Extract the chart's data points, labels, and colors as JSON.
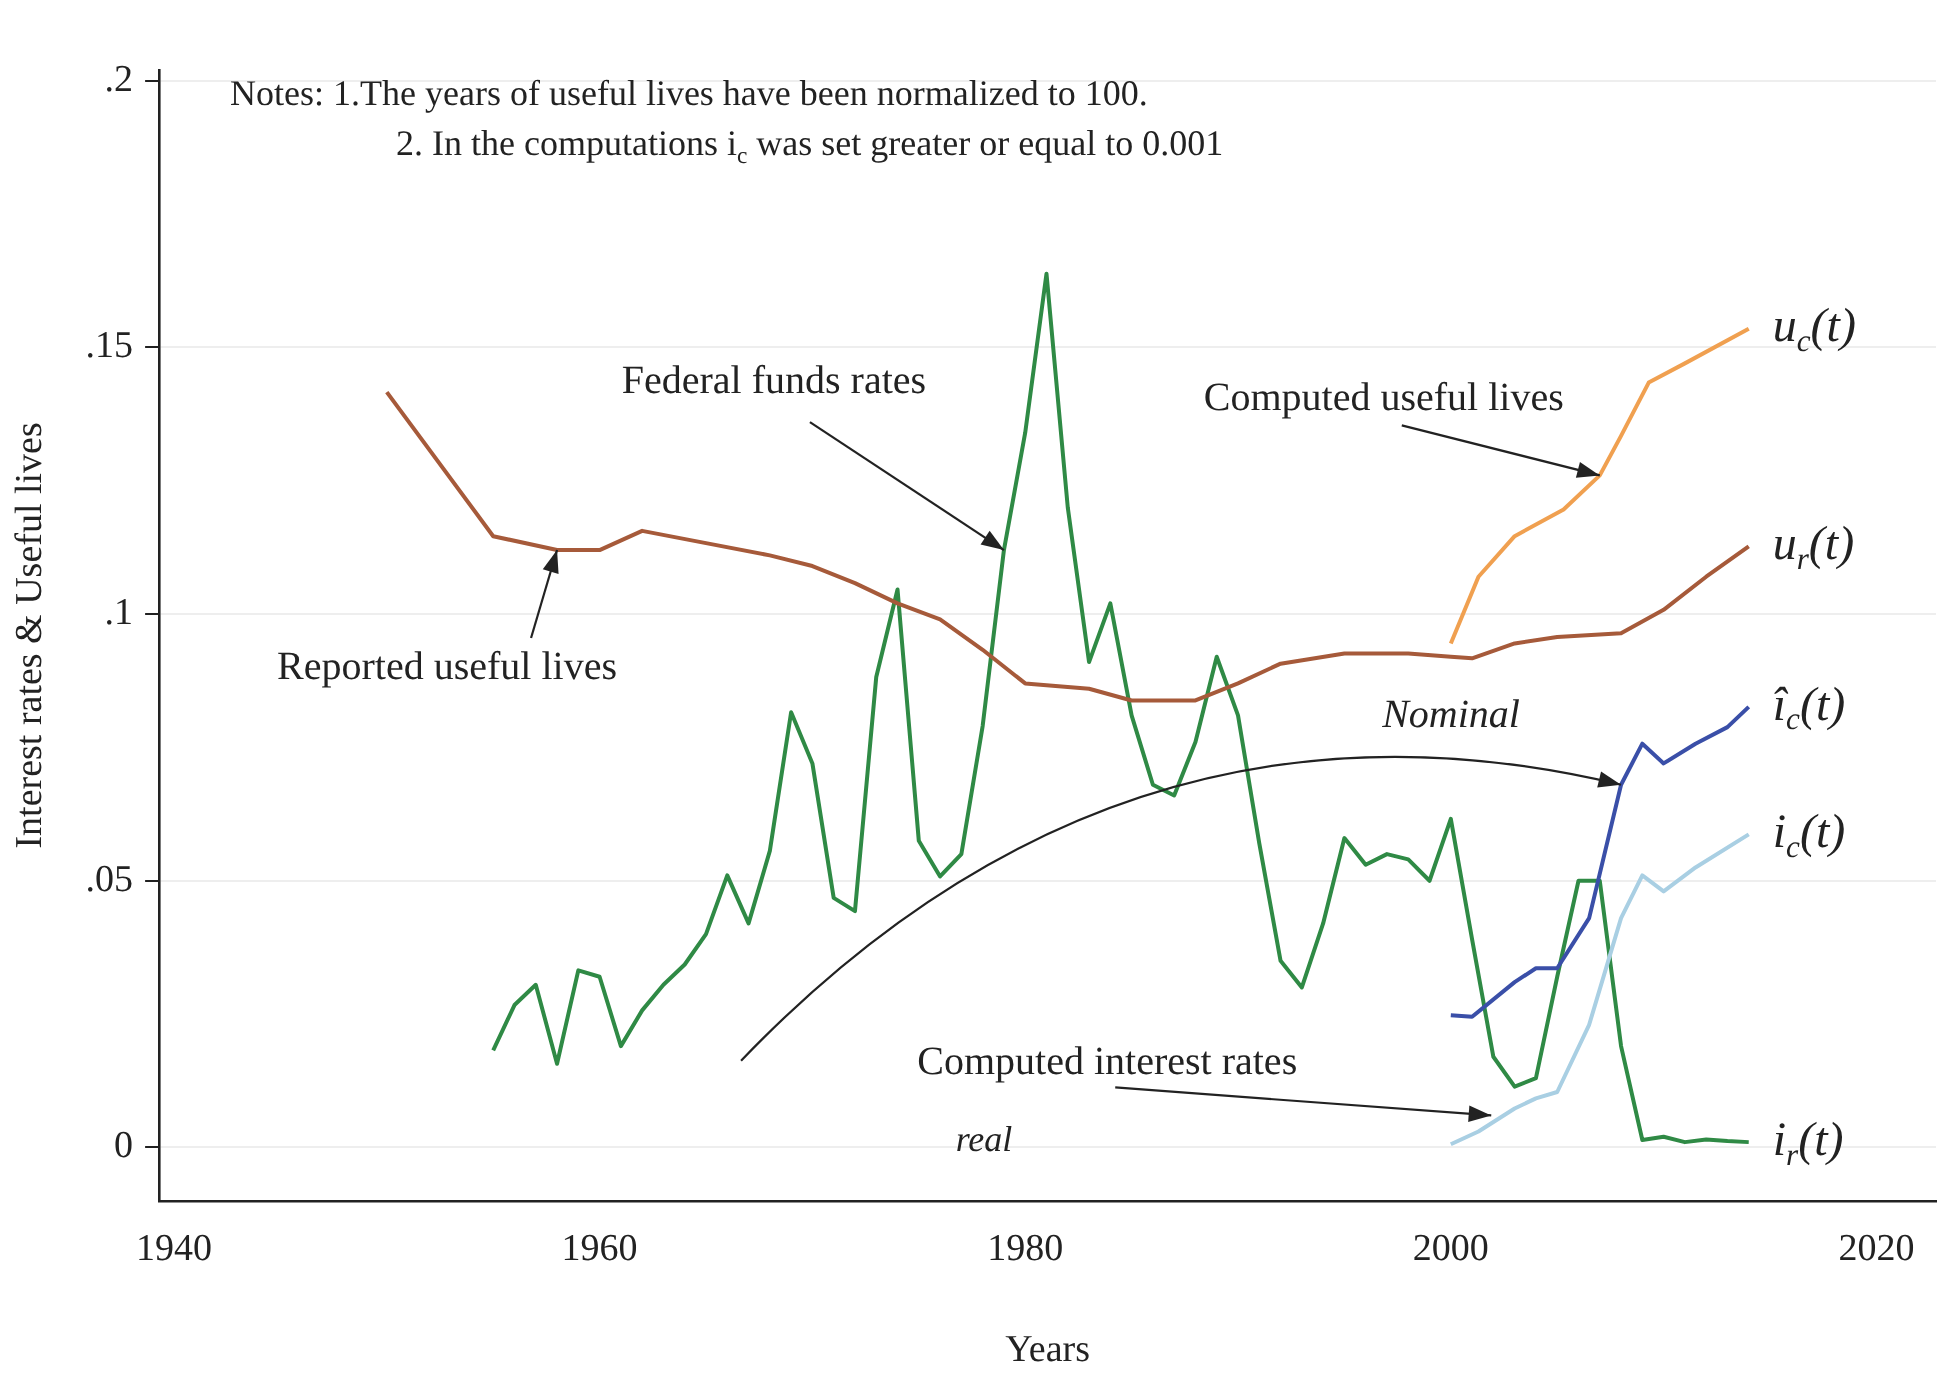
{
  "chart_data": {
    "type": "line",
    "xlabel": "Years",
    "ylabel": "Interest rates & Useful lives",
    "xlim": [
      1939.3,
      2022.8
    ],
    "xticks": [
      1940,
      1960,
      1980,
      2000,
      2020
    ],
    "ylim": [
      -0.01,
      0.202
    ],
    "yticks": [
      {
        "value": 0,
        "label": "0"
      },
      {
        "value": 0.05,
        "label": ".05"
      },
      {
        "value": 0.1,
        "label": ".1"
      },
      {
        "value": 0.15,
        "label": ".15"
      },
      {
        "value": 0.2,
        "label": ".2"
      }
    ],
    "grid": "y",
    "legend": false,
    "marker": "none",
    "line_style": "solid",
    "series": [
      {
        "name": "u$_{c}$(t)",
        "color": "#f0a050",
        "x": [
          2000,
          2001.3,
          2003,
          2005.3,
          2007,
          2008,
          2009.3,
          2011,
          2014
        ],
        "values": [
          0.0945,
          0.107,
          0.1146,
          0.1196,
          0.126,
          0.1334,
          0.1434,
          0.147,
          0.1535
        ]
      },
      {
        "name": "u$_{r}$(t)",
        "color": "#a65a3a",
        "x": [
          1950,
          1955,
          1958,
          1960,
          1962,
          1965,
          1968,
          1970,
          1972,
          1974,
          1976,
          1978,
          1980,
          1983,
          1985,
          1988,
          1990,
          1992,
          1995,
          1998,
          2000,
          2001,
          2003,
          2005,
          2008,
          2010,
          2012,
          2014
        ],
        "values": [
          0.1416,
          0.1146,
          0.112,
          0.112,
          0.1156,
          0.1133,
          0.111,
          0.109,
          0.1058,
          0.102,
          0.099,
          0.0933,
          0.087,
          0.086,
          0.0838,
          0.0838,
          0.087,
          0.0907,
          0.0926,
          0.0926,
          0.092,
          0.0917,
          0.0945,
          0.0957,
          0.0964,
          0.1008,
          0.107,
          0.1127
        ]
      },
      {
        "name": "î$_{c}$(t)",
        "color": "#3a4fa8",
        "x": [
          2000,
          2001,
          2003,
          2004,
          2005,
          2006.5,
          2008,
          2009,
          2010,
          2011.5,
          2013,
          2014
        ],
        "values": [
          0.0248,
          0.0245,
          0.031,
          0.0336,
          0.0336,
          0.043,
          0.068,
          0.0757,
          0.072,
          0.0757,
          0.0788,
          0.0826
        ]
      },
      {
        "name": "i$_{c}$(t)",
        "color": "#a9cfe3",
        "x": [
          2000,
          2001.3,
          2003,
          2004,
          2005,
          2006.5,
          2008,
          2009,
          2010,
          2011.5,
          2014
        ],
        "values": [
          0.0006,
          0.003,
          0.0073,
          0.0092,
          0.0104,
          0.023,
          0.043,
          0.051,
          0.048,
          0.0525,
          0.0587
        ]
      },
      {
        "name": "i$_{r}$(t)",
        "color": "#2f8a45",
        "x": [
          1955,
          1956,
          1957,
          1958,
          1959,
          1960,
          1961,
          1962,
          1963,
          1964,
          1965,
          1966,
          1967,
          1968,
          1969,
          1970,
          1971,
          1972,
          1973,
          1974,
          1975,
          1976,
          1977,
          1978,
          1979,
          1980,
          1981,
          1982,
          1983,
          1984,
          1985,
          1986,
          1987,
          1988,
          1989,
          1990,
          1991,
          1992,
          1993,
          1994,
          1995,
          1996,
          1997,
          1998,
          1999,
          2000,
          2001,
          2002,
          2003,
          2004,
          2005,
          2006,
          2007,
          2008,
          2009,
          2010,
          2011,
          2012,
          2013,
          2014
        ],
        "values": [
          0.0182,
          0.0267,
          0.0305,
          0.0157,
          0.0332,
          0.032,
          0.019,
          0.0257,
          0.0305,
          0.0343,
          0.04,
          0.051,
          0.042,
          0.0556,
          0.0816,
          0.072,
          0.0468,
          0.0443,
          0.0882,
          0.1046,
          0.0575,
          0.0508,
          0.055,
          0.079,
          0.112,
          0.134,
          0.1638,
          0.12,
          0.091,
          0.102,
          0.081,
          0.068,
          0.066,
          0.076,
          0.092,
          0.081,
          0.057,
          0.035,
          0.03,
          0.042,
          0.058,
          0.053,
          0.055,
          0.054,
          0.05,
          0.0616,
          0.039,
          0.017,
          0.0114,
          0.013,
          0.032,
          0.05,
          0.05,
          0.019,
          0.0014,
          0.002,
          0.001,
          0.0015,
          0.0012,
          0.001
        ]
      }
    ],
    "annotations": [
      "Notes: 1.The years of useful lives have been normalized to 100.",
      "2. In the computations i$_{c}$ was set greater or equal to 0.001",
      {
        "text": "Federal funds rates",
        "x": 1979,
        "y": 0.112
      },
      {
        "text": "Reported useful lives",
        "x": 1958,
        "y": 0.112
      },
      {
        "text": "Computed useful lives",
        "x": 2007,
        "y": 0.126
      },
      {
        "text": "Nominal",
        "x": 2008,
        "y": 0.068
      },
      {
        "text": "Computed interest rates",
        "x": 2001.9,
        "y": 0.006
      },
      "real"
    ]
  }
}
